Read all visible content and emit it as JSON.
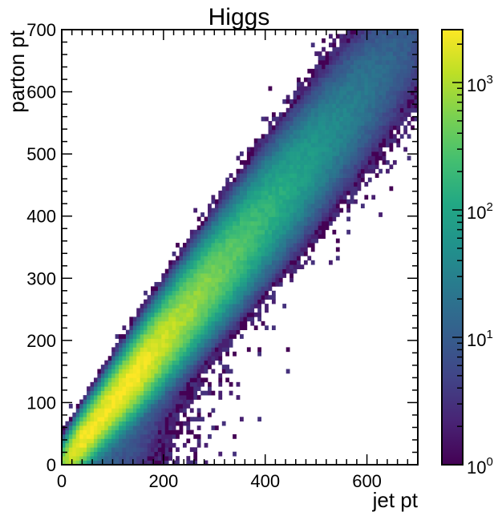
{
  "chart_data": {
    "type": "heatmap",
    "title": "Higgs",
    "xlabel": "jet pt",
    "ylabel": "parton pt",
    "xlim": [
      0,
      700
    ],
    "ylim": [
      0,
      700
    ],
    "x_ticks": [
      0,
      200,
      400,
      600
    ],
    "x_tick_labels": [
      "0",
      "200",
      "400",
      "600"
    ],
    "y_ticks": [
      0,
      100,
      200,
      300,
      400,
      500,
      600,
      700
    ],
    "y_tick_labels": [
      "0",
      "100",
      "200",
      "300",
      "400",
      "500",
      "600",
      "700"
    ],
    "bins": 100,
    "colormap": "viridis",
    "colorbar": {
      "scale": "log",
      "range": [
        1,
        2600
      ],
      "ticks": [
        1,
        10,
        100,
        1000
      ],
      "tick_labels": [
        "10^0",
        "10^1",
        "10^2",
        "10^3"
      ]
    },
    "density": {
      "ridge": "parton pt ≈ jet pt",
      "peak_counts": 2500,
      "peak_region_jet_pt": [
        30,
        150
      ],
      "count_near_300": 220,
      "count_near_500": 45,
      "count_near_650": 6,
      "sparse_tail": "jet pt > parton pt below the diagonal"
    }
  },
  "labels": {
    "title": "Higgs",
    "xlabel": "jet pt",
    "ylabel": "parton pt"
  }
}
